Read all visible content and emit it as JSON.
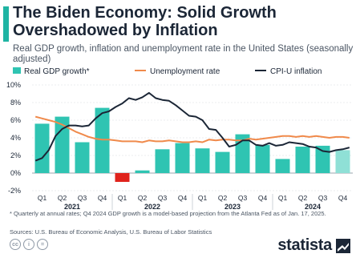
{
  "header": {
    "title": "The Biden Economy: Solid Growth Overshadowed by Inflation",
    "subtitle": "Real GDP growth, inflation and unemployment rate in the United States (seasonally adjusted)"
  },
  "colors": {
    "gdp_bar": "#2fc4b2",
    "gdp_negative": "#e0231c",
    "gdp_estimate": "#8fe0d6",
    "unemployment": "#f08a4b",
    "inflation": "#1b2636",
    "accent": "#1fb4a3"
  },
  "chart_data": {
    "type": "bar",
    "y_tick_labels": [
      "10%",
      "8%",
      "6%",
      "4%",
      "2%",
      "0%",
      "-2%"
    ],
    "ylim": [
      -2,
      10
    ],
    "quarter_labels": [
      "Q1",
      "Q2",
      "Q3",
      "Q4",
      "Q1",
      "Q2",
      "Q3",
      "Q4",
      "Q1",
      "Q2",
      "Q3",
      "Q4",
      "Q1",
      "Q2",
      "Q3",
      "Q4"
    ],
    "year_labels": [
      "2021",
      "2022",
      "2023",
      "2024"
    ],
    "series": [
      {
        "name": "Real GDP growth*",
        "type": "bar",
        "values": [
          5.6,
          6.4,
          3.5,
          7.4,
          -1.0,
          0.3,
          2.7,
          3.4,
          2.8,
          2.4,
          4.4,
          3.2,
          1.6,
          3.0,
          3.1,
          2.6
        ],
        "estimated_index": 15
      },
      {
        "name": "Unemployment rate",
        "type": "line",
        "values": [
          6.4,
          6.2,
          6.0,
          5.8,
          5.5,
          5.1,
          4.7,
          4.4,
          4.1,
          3.9,
          3.8,
          3.8,
          3.7,
          3.6,
          3.6,
          3.6,
          3.5,
          3.7,
          3.6,
          3.6,
          3.7,
          3.6,
          3.5,
          3.5,
          3.6,
          3.5,
          3.8,
          3.7,
          3.8,
          3.8,
          3.7,
          3.7,
          3.9,
          3.8,
          3.9,
          4.0,
          4.1,
          4.2,
          4.2,
          4.1,
          4.2,
          4.1,
          4.2,
          4.1,
          4.0,
          4.1,
          4.1,
          4.0
        ]
      },
      {
        "name": "CPI-U inflation",
        "type": "line",
        "values": [
          1.4,
          1.7,
          2.6,
          4.2,
          5.0,
          5.4,
          5.4,
          5.3,
          5.4,
          6.2,
          6.8,
          7.0,
          7.5,
          7.9,
          8.5,
          8.3,
          8.6,
          9.1,
          8.5,
          8.3,
          8.2,
          7.7,
          7.1,
          6.5,
          6.4,
          6.0,
          5.0,
          4.9,
          4.0,
          3.0,
          3.2,
          3.7,
          3.7,
          3.2,
          3.1,
          3.4,
          3.1,
          3.2,
          3.5,
          3.4,
          3.3,
          3.0,
          2.9,
          2.5,
          2.4,
          2.6,
          2.7,
          2.9
        ]
      }
    ]
  },
  "footnote": "* Quarterly at annual rates; Q4 2024 GDP growth is a model-based projection from the Atlanta Fed as of Jan. 17, 2025.",
  "sources": "Sources: U.S. Bureau of Economic Analysis, U.S. Bureau of Labor Statistics",
  "branding": {
    "logo_text": "statista"
  }
}
